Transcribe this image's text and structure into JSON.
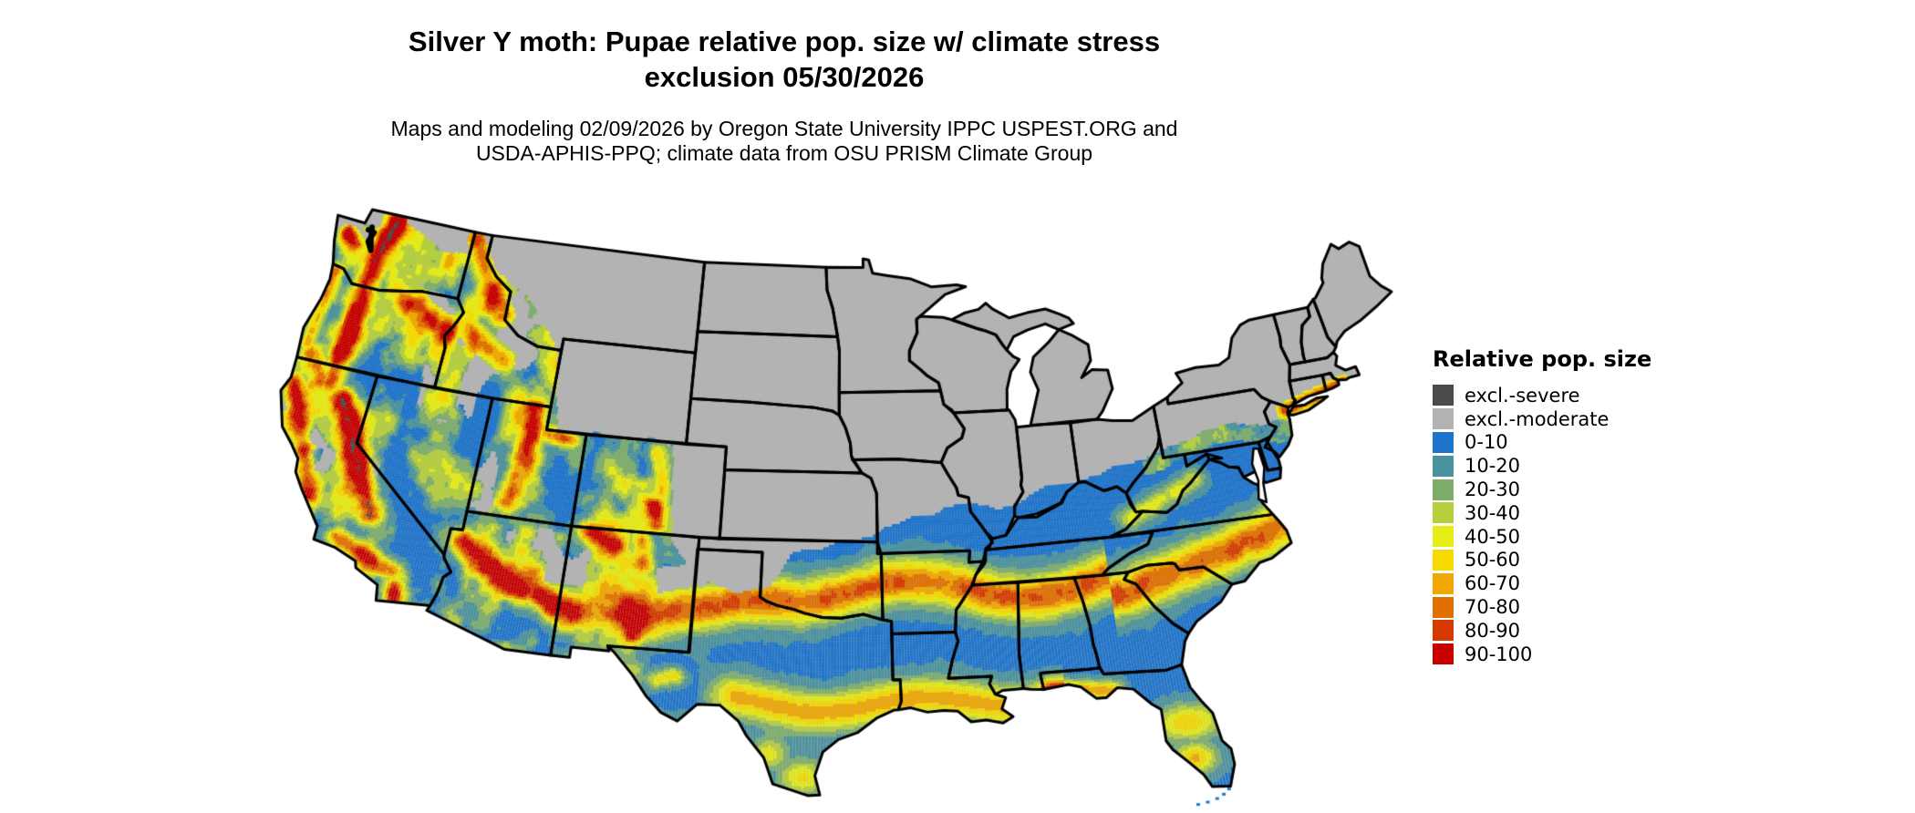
{
  "header": {
    "title_line1": "Silver Y moth: Pupae relative pop. size w/ climate stress",
    "title_line2": "exclusion 05/30/2026",
    "subtitle_line1": "Maps and modeling 02/09/2026 by Oregon State University IPPC USPEST.ORG and",
    "subtitle_line2": "USDA-APHIS-PPQ; climate data from OSU PRISM Climate Group"
  },
  "legend": {
    "title": "Relative pop. size",
    "items": [
      {
        "label": "excl.-severe",
        "color": "#4a4a4a"
      },
      {
        "label": "excl.-moderate",
        "color": "#b3b3b3"
      },
      {
        "label": "0-10",
        "color": "#1d74cc"
      },
      {
        "label": "10-20",
        "color": "#4a929e"
      },
      {
        "label": "20-30",
        "color": "#7dad6d"
      },
      {
        "label": "30-40",
        "color": "#b5cf3f"
      },
      {
        "label": "40-50",
        "color": "#e6ec14"
      },
      {
        "label": "50-60",
        "color": "#f8da00"
      },
      {
        "label": "60-70",
        "color": "#f0a800"
      },
      {
        "label": "70-80",
        "color": "#e17000"
      },
      {
        "label": "80-90",
        "color": "#d63a00"
      },
      {
        "label": "90-100",
        "color": "#c80000"
      }
    ]
  },
  "map": {
    "region": "Contiguous United States with state boundaries",
    "boundary_color": "#000000",
    "background_color": "#ffffff"
  }
}
